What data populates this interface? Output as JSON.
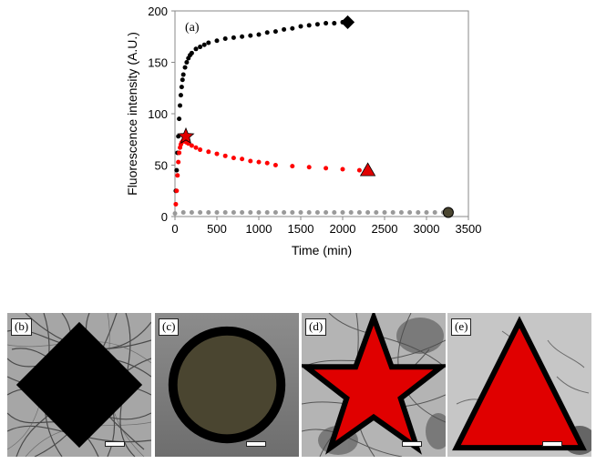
{
  "chart_data": {
    "type": "scatter",
    "panel_label": "(a)",
    "xlabel": "Time (min)",
    "ylabel": "Fluorescence intensity (A.U.)",
    "xlim": [
      0,
      3500
    ],
    "ylim": [
      0,
      200
    ],
    "xticks": [
      "0",
      "500",
      "1000",
      "1500",
      "2000",
      "2500",
      "3000",
      "3500"
    ],
    "yticks": [
      "0",
      "50",
      "100",
      "150",
      "200"
    ],
    "grid": false,
    "series": [
      {
        "color": "#000000",
        "end_marker": "diamond",
        "x": [
          10,
          20,
          30,
          40,
          50,
          60,
          70,
          80,
          90,
          100,
          120,
          140,
          160,
          180,
          200,
          250,
          300,
          350,
          400,
          500,
          600,
          700,
          800,
          900,
          1000,
          1100,
          1200,
          1300,
          1400,
          1500,
          1600,
          1700,
          1800,
          1900,
          2000,
          2060
        ],
        "y": [
          25,
          45,
          62,
          78,
          95,
          108,
          118,
          126,
          133,
          138,
          145,
          150,
          154,
          157,
          159,
          163,
          165,
          167,
          169,
          171,
          173,
          174,
          175,
          176,
          177,
          179,
          180,
          182,
          183,
          185,
          186,
          187,
          188,
          188,
          189,
          189
        ]
      },
      {
        "color": "#ff0000",
        "end_marker": "triangle",
        "x": [
          10,
          20,
          30,
          40,
          50,
          60,
          70,
          80,
          90,
          100,
          120,
          140,
          160,
          200,
          250,
          300,
          400,
          500,
          600,
          700,
          800,
          900,
          1000,
          1100,
          1200,
          1400,
          1600,
          1800,
          2000,
          2200,
          2300
        ],
        "y": [
          12,
          25,
          40,
          53,
          62,
          67,
          70,
          72,
          73,
          74,
          73,
          72,
          71,
          69,
          67,
          65,
          63,
          61,
          59,
          57,
          56,
          54,
          53,
          52,
          50,
          49,
          48,
          47,
          46,
          45,
          45
        ]
      },
      {
        "color": "#999999",
        "end_marker": "circle",
        "x": [
          0,
          100,
          200,
          300,
          400,
          500,
          600,
          700,
          800,
          900,
          1000,
          1100,
          1200,
          1300,
          1400,
          1500,
          1600,
          1700,
          1800,
          1900,
          2000,
          2100,
          2200,
          2300,
          2400,
          2500,
          2600,
          2700,
          2800,
          2900,
          3000,
          3100,
          3200,
          3260
        ],
        "y": [
          3,
          4,
          4,
          4,
          4,
          4,
          4,
          4,
          4,
          4,
          4,
          4,
          4,
          4,
          4,
          4,
          4,
          4,
          4,
          4,
          4,
          4,
          4,
          4,
          4,
          4,
          4,
          4,
          4,
          4,
          4,
          4,
          4,
          4
        ]
      }
    ],
    "annotations": [
      {
        "marker": "star",
        "x": 130,
        "y": 78,
        "color": "#e00000"
      }
    ]
  },
  "panels": [
    {
      "label": "(b)",
      "marker": "diamond"
    },
    {
      "label": "(c)",
      "marker": "circle"
    },
    {
      "label": "(d)",
      "marker": "star"
    },
    {
      "label": "(e)",
      "marker": "triangle"
    }
  ],
  "colors": {
    "diamond": "#000000",
    "circle": "#4a4530",
    "star": "#e00000",
    "triangle": "#e00000"
  }
}
